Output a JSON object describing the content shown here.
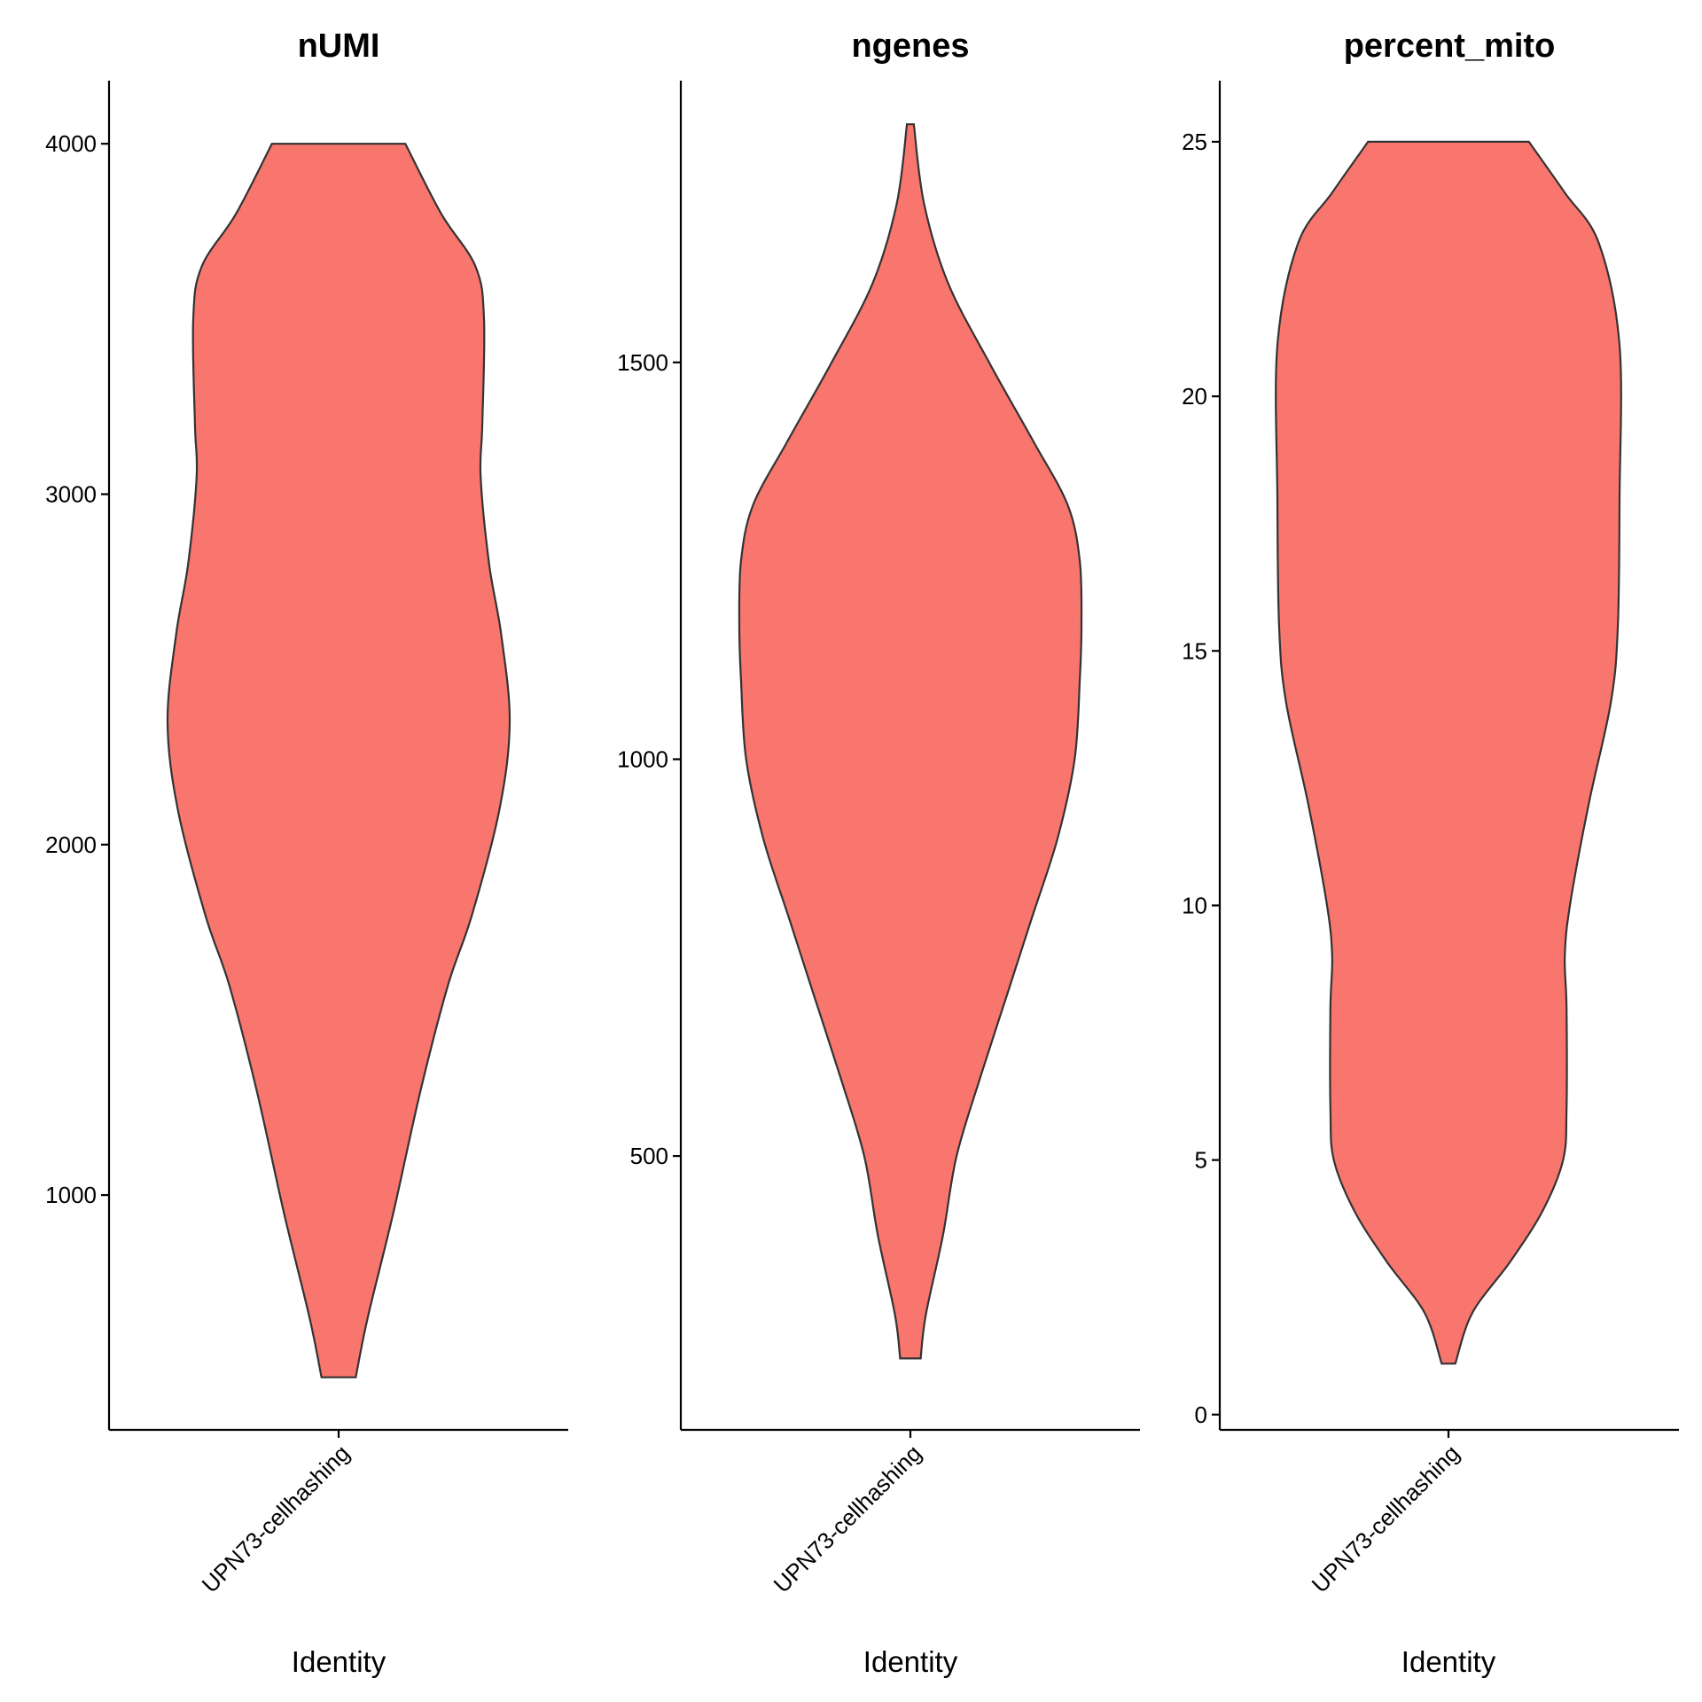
{
  "chart_data": [
    {
      "type": "violin",
      "title": "nUMI",
      "xlabel": "Identity",
      "categories": [
        "UPN73-cellhashing"
      ],
      "ylim": [
        330,
        4180
      ],
      "yticks": [
        1000,
        2000,
        3000,
        4000
      ],
      "fill": "#F8766D",
      "outline": "#333333",
      "density": [
        {
          "y": 480,
          "w": 0.1
        },
        {
          "y": 650,
          "w": 0.17
        },
        {
          "y": 950,
          "w": 0.32
        },
        {
          "y": 1300,
          "w": 0.48
        },
        {
          "y": 1600,
          "w": 0.64
        },
        {
          "y": 1800,
          "w": 0.78
        },
        {
          "y": 2100,
          "w": 0.94
        },
        {
          "y": 2350,
          "w": 1.0
        },
        {
          "y": 2600,
          "w": 0.95
        },
        {
          "y": 2800,
          "w": 0.88
        },
        {
          "y": 3050,
          "w": 0.83
        },
        {
          "y": 3200,
          "w": 0.84
        },
        {
          "y": 3500,
          "w": 0.85
        },
        {
          "y": 3650,
          "w": 0.8
        },
        {
          "y": 3800,
          "w": 0.6
        },
        {
          "y": 4000,
          "w": 0.39
        }
      ]
    },
    {
      "type": "violin",
      "title": "ngenes",
      "xlabel": "Identity",
      "categories": [
        "UPN73-cellhashing"
      ],
      "ylim": [
        155,
        1855
      ],
      "yticks": [
        500,
        1000,
        1500
      ],
      "fill": "#F8766D",
      "outline": "#333333",
      "density": [
        {
          "y": 245,
          "w": 0.06
        },
        {
          "y": 300,
          "w": 0.09
        },
        {
          "y": 400,
          "w": 0.19
        },
        {
          "y": 500,
          "w": 0.27
        },
        {
          "y": 600,
          "w": 0.41
        },
        {
          "y": 700,
          "w": 0.56
        },
        {
          "y": 800,
          "w": 0.71
        },
        {
          "y": 900,
          "w": 0.86
        },
        {
          "y": 1000,
          "w": 0.96
        },
        {
          "y": 1100,
          "w": 0.99
        },
        {
          "y": 1170,
          "w": 1.0
        },
        {
          "y": 1250,
          "w": 0.99
        },
        {
          "y": 1320,
          "w": 0.92
        },
        {
          "y": 1400,
          "w": 0.72
        },
        {
          "y": 1500,
          "w": 0.46
        },
        {
          "y": 1600,
          "w": 0.22
        },
        {
          "y": 1700,
          "w": 0.08
        },
        {
          "y": 1800,
          "w": 0.02
        }
      ]
    },
    {
      "type": "violin",
      "title": "percent_mito",
      "xlabel": "Identity",
      "categories": [
        "UPN73-cellhashing"
      ],
      "ylim": [
        -0.3,
        26.2
      ],
      "yticks": [
        0,
        5,
        10,
        15,
        20,
        25
      ],
      "fill": "#F8766D",
      "outline": "#333333",
      "density": [
        {
          "y": 1,
          "w": 0.04
        },
        {
          "y": 2,
          "w": 0.14
        },
        {
          "y": 3,
          "w": 0.36
        },
        {
          "y": 4,
          "w": 0.55
        },
        {
          "y": 5,
          "w": 0.67
        },
        {
          "y": 6,
          "w": 0.69
        },
        {
          "y": 8,
          "w": 0.69
        },
        {
          "y": 9,
          "w": 0.68
        },
        {
          "y": 10,
          "w": 0.71
        },
        {
          "y": 12,
          "w": 0.82
        },
        {
          "y": 14,
          "w": 0.95
        },
        {
          "y": 15.5,
          "w": 0.99
        },
        {
          "y": 18,
          "w": 1.0
        },
        {
          "y": 21,
          "w": 1.0
        },
        {
          "y": 23,
          "w": 0.88
        },
        {
          "y": 24,
          "w": 0.68
        },
        {
          "y": 25,
          "w": 0.47
        }
      ]
    }
  ]
}
